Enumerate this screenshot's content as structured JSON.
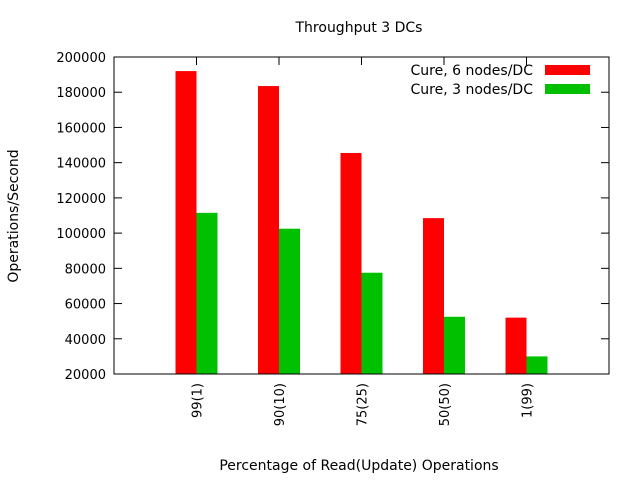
{
  "chart_data": {
    "type": "bar",
    "title": "Throughput 3 DCs",
    "xlabel": "Percentage of Read(Update) Operations",
    "ylabel": "Operations/Second",
    "categories": [
      "99(1)",
      "90(10)",
      "75(25)",
      "50(50)",
      "1(99)"
    ],
    "ylim": [
      20000,
      200000
    ],
    "yticks": [
      "20000",
      "40000",
      "60000",
      "80000",
      "100000",
      "120000",
      "140000",
      "160000",
      "180000",
      "200000"
    ],
    "grid": false,
    "legend_position": "top-right",
    "series": [
      {
        "name": "Cure, 6 nodes/DC",
        "color": "#ff0000",
        "values": [
          192000,
          183500,
          145500,
          108500,
          52000
        ]
      },
      {
        "name": "Cure, 3 nodes/DC",
        "color": "#00c000",
        "values": [
          111500,
          102500,
          77500,
          52500,
          30000
        ]
      }
    ]
  }
}
